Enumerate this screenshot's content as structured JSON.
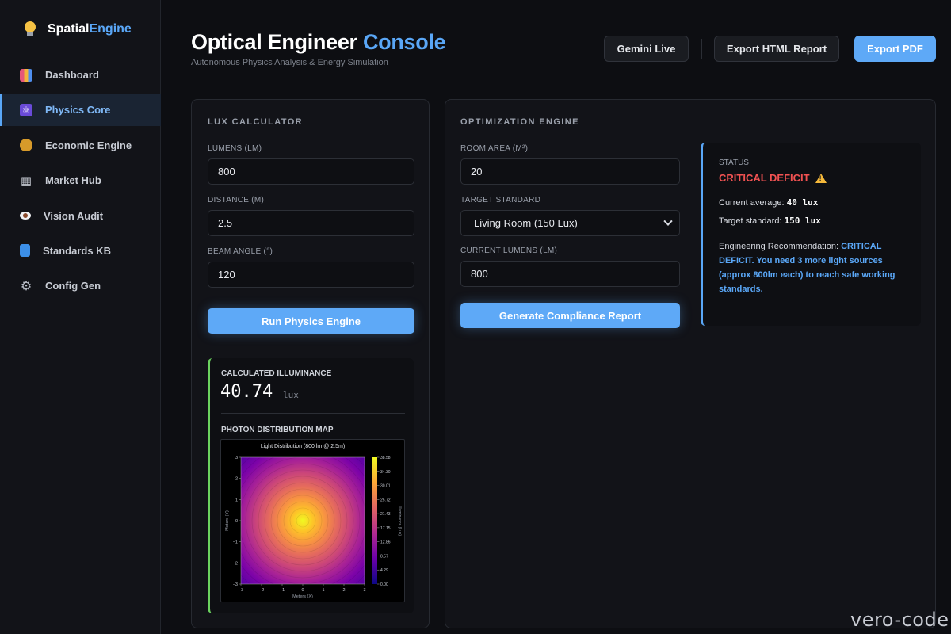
{
  "brand": {
    "part1": "Spatial",
    "part2": "Engine"
  },
  "sidebar": {
    "items": [
      {
        "label": "Dashboard",
        "icon": "chart-icon"
      },
      {
        "label": "Physics Core",
        "icon": "atom-icon",
        "active": true
      },
      {
        "label": "Economic Engine",
        "icon": "money-bag-icon"
      },
      {
        "label": "Market Hub",
        "icon": "cart-icon"
      },
      {
        "label": "Vision Audit",
        "icon": "eye-icon"
      },
      {
        "label": "Standards KB",
        "icon": "book-icon"
      },
      {
        "label": "Config Gen",
        "icon": "gear-icon"
      }
    ]
  },
  "header": {
    "title_main": "Optical Engineer",
    "title_accent": "Console",
    "subtitle": "Autonomous Physics Analysis & Energy Simulation",
    "buttons": {
      "live": "Gemini Live",
      "html": "Export HTML Report",
      "pdf": "Export PDF"
    }
  },
  "lux": {
    "title": "LUX CALCULATOR",
    "lumens_label": "LUMENS (LM)",
    "lumens_value": "800",
    "distance_label": "DISTANCE (M)",
    "distance_value": "2.5",
    "beam_label": "BEAM ANGLE (°)",
    "beam_value": "120",
    "run_button": "Run Physics Engine",
    "result_label": "CALCULATED ILLUMINANCE",
    "result_value": "40.74",
    "result_unit": "lux",
    "map_label": "PHOTON DISTRIBUTION MAP"
  },
  "optimization": {
    "title": "OPTIMIZATION ENGINE",
    "area_label": "ROOM AREA (M²)",
    "area_value": "20",
    "standard_label": "TARGET STANDARD",
    "standard_value": "Living Room (150 Lux)",
    "current_label": "CURRENT LUMENS (LM)",
    "current_value": "800",
    "report_button": "Generate Compliance Report"
  },
  "status": {
    "label": "STATUS",
    "value": "CRITICAL DEFICIT",
    "current_prefix": "Current average:",
    "current_value": "40 lux",
    "target_prefix": "Target standard:",
    "target_value": "150 lux",
    "rec_prefix": "Engineering Recommendation:",
    "rec_text": "CRITICAL DEFICIT. You need 3 more light sources (approx 800lm each) to reach safe working standards.",
    "colors": {
      "critical": "#f25252",
      "accent": "#5aa7f7",
      "success": "#6bd35f"
    }
  },
  "chart_data": {
    "type": "heatmap",
    "title": "Light Distribution (800 lm @ 2.5m)",
    "xlabel": "Meters (X)",
    "ylabel": "Meters (Y)",
    "xlim": [
      -3,
      3
    ],
    "ylim": [
      -3,
      3
    ],
    "x_ticks": [
      "-3",
      "-2",
      "-1",
      "0",
      "1",
      "2",
      "3"
    ],
    "y_ticks": [
      "3",
      "2",
      "1",
      "0",
      "-1",
      "-2",
      "-3"
    ],
    "colorbar_label": "Illuminance (Lux)",
    "colorbar_ticks": [
      "38.58",
      "34.30",
      "30.01",
      "25.72",
      "21.43",
      "17.15",
      "12.86",
      "8.57",
      "4.29",
      "0.00"
    ],
    "colorbar_range": [
      0,
      38.58
    ],
    "peak_center": [
      0,
      0
    ],
    "colormap": "plasma"
  },
  "watermark": "vero-code"
}
